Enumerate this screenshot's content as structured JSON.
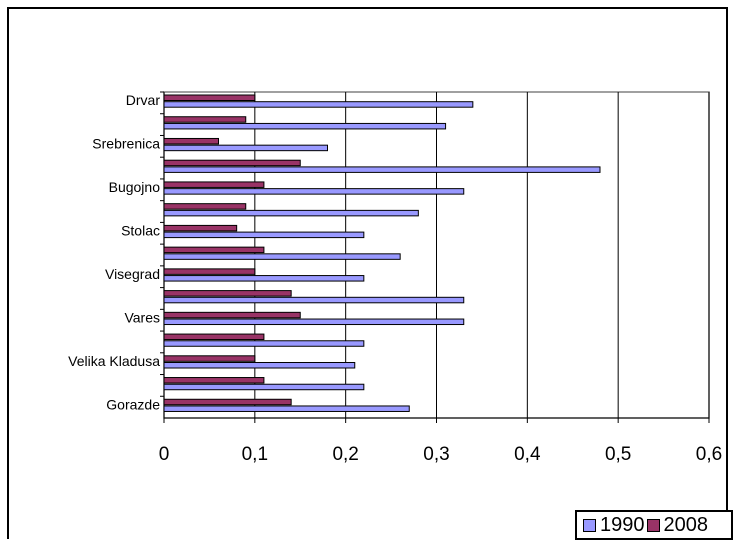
{
  "chart_data": {
    "type": "bar",
    "orientation": "horizontal",
    "title": "",
    "xlabel": "",
    "ylabel": "",
    "xlim": [
      0,
      0.6
    ],
    "x_ticks": [
      "0",
      "0,1",
      "0,2",
      "0,3",
      "0,4",
      "0,5",
      "0,6"
    ],
    "tick_values": [
      0,
      0.1,
      0.2,
      0.3,
      0.4,
      0.5,
      0.6
    ],
    "grid": "vertical",
    "legend_position": "bottom-right",
    "categories": [
      "Drvar",
      "",
      "Srebrenica",
      "",
      "Bugojno",
      "",
      "Stolac",
      "",
      "Visegrad",
      "",
      "Vares",
      "",
      "Velika Kladusa",
      "",
      "Gorazde"
    ],
    "series": [
      {
        "name": "1990",
        "color": "#9999ff",
        "values": [
          0.34,
          0.31,
          0.18,
          0.48,
          0.33,
          0.28,
          0.22,
          0.26,
          0.22,
          0.33,
          0.33,
          0.22,
          0.21,
          0.22,
          0.27
        ]
      },
      {
        "name": "2008",
        "color": "#993366",
        "values": [
          0.1,
          0.09,
          0.06,
          0.15,
          0.11,
          0.09,
          0.08,
          0.11,
          0.1,
          0.14,
          0.15,
          0.11,
          0.1,
          0.11,
          0.14
        ]
      }
    ]
  }
}
